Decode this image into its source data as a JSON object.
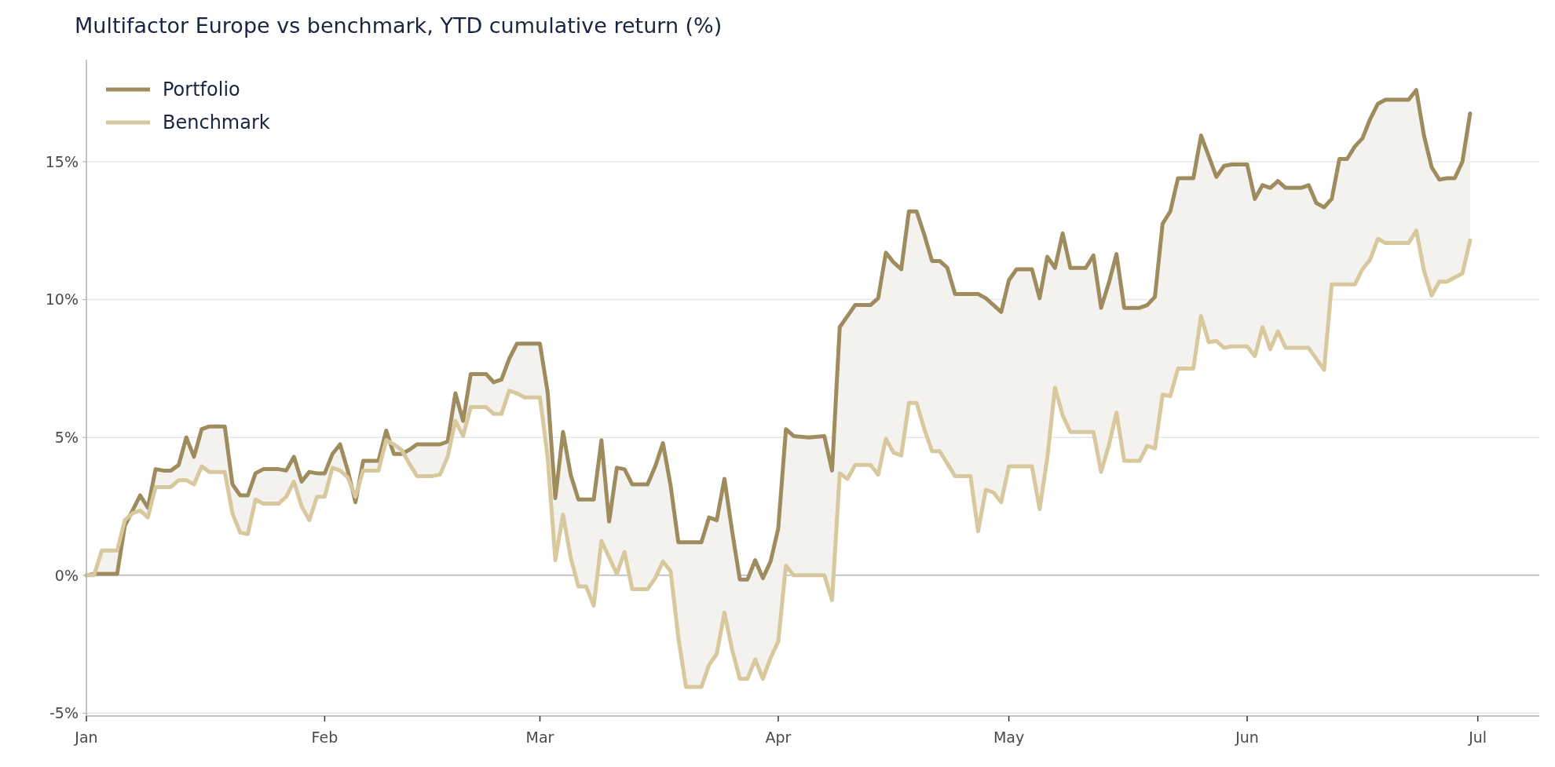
{
  "chart_data": {
    "type": "line",
    "title": "Multifactor Europe vs benchmark, YTD cumulative return (%)",
    "xlim": [
      "--01-01",
      "--07-09"
    ],
    "ylim": [
      -5.1,
      18.7
    ],
    "xticks": [
      {
        "value": "--01-01",
        "label": "Jan"
      },
      {
        "value": "--02-01",
        "label": "Feb"
      },
      {
        "value": "--03-01",
        "label": "Mar"
      },
      {
        "value": "--04-01",
        "label": "Apr"
      },
      {
        "value": "--05-01",
        "label": "May"
      },
      {
        "value": "--06-01",
        "label": "Jun"
      },
      {
        "value": "--07-01",
        "label": "Jul"
      }
    ],
    "yticks": [
      {
        "value": -5,
        "label": "-5%"
      },
      {
        "value": 0,
        "label": "0%"
      },
      {
        "value": 5,
        "label": "5%"
      },
      {
        "value": 10,
        "label": "10%"
      },
      {
        "value": 15,
        "label": "15%"
      }
    ],
    "grid": "y",
    "legend": "top left",
    "ref_lines": [
      {
        "axis": "y",
        "value": 0,
        "color": "#c4c4c4"
      }
    ],
    "x": [
      "--01-01",
      "--01-02",
      "--01-03",
      "--01-05",
      "--01-06",
      "--01-07",
      "--01-08",
      "--01-09",
      "--01-10",
      "--01-11",
      "--01-12",
      "--01-13",
      "--01-14",
      "--01-15",
      "--01-16",
      "--01-17",
      "--01-19",
      "--01-20",
      "--01-21",
      "--01-22",
      "--01-23",
      "--01-24",
      "--01-26",
      "--01-27",
      "--01-28",
      "--01-29",
      "--01-30",
      "--01-31",
      "--02-01",
      "--02-02",
      "--02-03",
      "--02-04",
      "--02-05",
      "--02-06",
      "--02-08",
      "--02-09",
      "--02-10",
      "--02-11",
      "--02-12",
      "--02-13",
      "--02-15",
      "--02-16",
      "--02-17",
      "--02-18",
      "--02-19",
      "--02-20",
      "--02-22",
      "--02-23",
      "--02-24",
      "--02-25",
      "--02-26",
      "--02-27",
      "--03-01",
      "--03-02",
      "--03-03",
      "--03-04",
      "--03-05",
      "--03-06",
      "--03-07",
      "--03-08",
      "--03-09",
      "--03-10",
      "--03-11",
      "--03-12",
      "--03-13",
      "--03-15",
      "--03-16",
      "--03-17",
      "--03-18",
      "--03-19",
      "--03-20",
      "--03-22",
      "--03-23",
      "--03-24",
      "--03-25",
      "--03-26",
      "--03-27",
      "--03-28",
      "--03-29",
      "--03-30",
      "--03-31",
      "--04-01",
      "--04-02",
      "--04-03",
      "--04-05",
      "--04-07",
      "--04-08",
      "--04-09",
      "--04-10",
      "--04-11",
      "--04-13",
      "--04-14",
      "--04-15",
      "--04-16",
      "--04-17",
      "--04-18",
      "--04-19",
      "--04-20",
      "--04-21",
      "--04-22",
      "--04-23",
      "--04-24",
      "--04-26",
      "--04-27",
      "--04-28",
      "--04-29",
      "--04-30",
      "--05-01",
      "--05-02",
      "--05-04",
      "--05-05",
      "--05-06",
      "--05-07",
      "--05-08",
      "--05-09",
      "--05-11",
      "--05-12",
      "--05-13",
      "--05-14",
      "--05-15",
      "--05-16",
      "--05-18",
      "--05-19",
      "--05-20",
      "--05-21",
      "--05-22",
      "--05-23",
      "--05-25",
      "--05-26",
      "--05-27",
      "--05-28",
      "--05-29",
      "--05-30",
      "--06-01",
      "--06-02",
      "--06-03",
      "--06-04",
      "--06-05",
      "--06-06",
      "--06-08",
      "--06-09",
      "--06-10",
      "--06-11",
      "--06-12",
      "--06-13",
      "--06-14",
      "--06-15",
      "--06-16",
      "--06-17",
      "--06-18",
      "--06-19",
      "--06-22",
      "--06-23",
      "--06-24",
      "--06-25",
      "--06-26",
      "--06-27",
      "--06-28",
      "--06-29",
      "--06-30"
    ],
    "series": [
      {
        "name": "Portfolio",
        "color": "#9e8c5e",
        "values": [
          0,
          0.05,
          0.05,
          0.05,
          1.8,
          2.35,
          2.9,
          2.45,
          3.85,
          3.8,
          3.8,
          4.0,
          5.0,
          4.3,
          5.3,
          5.4,
          5.4,
          3.3,
          2.9,
          2.9,
          3.7,
          3.85,
          3.85,
          3.8,
          4.3,
          3.4,
          3.75,
          3.7,
          3.7,
          4.4,
          4.75,
          3.8,
          2.65,
          4.15,
          4.15,
          5.25,
          4.4,
          4.4,
          4.55,
          4.75,
          4.75,
          4.75,
          4.85,
          6.6,
          5.6,
          7.3,
          7.3,
          7.0,
          7.1,
          7.85,
          8.4,
          8.4,
          8.4,
          6.65,
          2.8,
          5.2,
          3.65,
          2.75,
          2.75,
          2.75,
          4.9,
          1.95,
          3.9,
          3.85,
          3.3,
          3.3,
          3.95,
          4.8,
          3.25,
          1.2,
          1.2,
          1.2,
          2.1,
          2.0,
          3.5,
          1.6,
          -0.15,
          -0.15,
          0.55,
          -0.1,
          0.5,
          1.7,
          5.3,
          5.05,
          5.0,
          5.05,
          3.8,
          9.0,
          9.4,
          9.8,
          9.8,
          10.05,
          11.7,
          11.35,
          11.1,
          13.2,
          13.2,
          12.35,
          11.4,
          11.4,
          11.15,
          10.2,
          10.2,
          10.2,
          10.05,
          9.8,
          9.55,
          10.7,
          11.1,
          11.1,
          10.05,
          11.55,
          11.15,
          12.4,
          11.15,
          11.15,
          11.6,
          9.7,
          10.6,
          11.65,
          9.7,
          9.7,
          9.8,
          10.1,
          12.75,
          13.2,
          14.4,
          14.4,
          15.95,
          15.2,
          14.45,
          14.85,
          14.9,
          14.9,
          13.65,
          14.15,
          14.05,
          14.3,
          14.05,
          14.05,
          14.15,
          13.5,
          13.35,
          13.65,
          15.1,
          15.1,
          15.55,
          15.85,
          16.55,
          17.1,
          17.25,
          17.25,
          17.6,
          15.95,
          14.8,
          14.35,
          14.4,
          14.4,
          15.0,
          16.75
        ],
        "lower": [
          0,
          0,
          0.9,
          0.9,
          2.0,
          2.25,
          2.35,
          2.1,
          3.2,
          3.2,
          3.2,
          3.45,
          3.45,
          3.3,
          3.95,
          3.75,
          3.75,
          2.25,
          1.55,
          1.5,
          2.75,
          2.6,
          2.6,
          2.85,
          3.4,
          2.5,
          2.0,
          2.85,
          2.85,
          3.9,
          3.8,
          3.55,
          2.85,
          3.8,
          3.8,
          4.9,
          4.75,
          4.55,
          4.05,
          3.6,
          3.6,
          3.65,
          4.3,
          5.6,
          5.05,
          6.1,
          6.1,
          5.85,
          5.85,
          6.7,
          6.6,
          6.45,
          6.45,
          4.3,
          0.55,
          2.2,
          0.65,
          -0.4,
          -0.4,
          -1.1,
          1.25,
          0.65,
          0.05,
          0.85,
          -0.5,
          -0.5,
          -0.1,
          0.5,
          0.15,
          -2.25,
          -4.05,
          -4.05,
          -3.25,
          -2.85,
          -1.35,
          -2.7,
          -3.75,
          -3.75,
          -3.05,
          -3.75,
          -3.0,
          -2.4,
          0.35,
          0,
          0,
          0,
          -0.9,
          3.7,
          3.5,
          4.0,
          4.0,
          3.65,
          4.95,
          4.45,
          4.35,
          6.25,
          6.25,
          5.3,
          4.5,
          4.5,
          4.05,
          3.6,
          3.6,
          1.6,
          3.1,
          3.0,
          2.65,
          3.95,
          3.95,
          3.95,
          2.4,
          4.25,
          6.8,
          5.8,
          5.2,
          5.2,
          5.2,
          3.75,
          4.7,
          5.9,
          4.15,
          4.15,
          4.7,
          4.6,
          6.55,
          6.5,
          7.5,
          7.5,
          9.4,
          8.45,
          8.5,
          8.25,
          8.3,
          8.3,
          7.95,
          9.0,
          8.2,
          8.85,
          8.25,
          8.25,
          8.25,
          7.85,
          7.45,
          10.55,
          10.55,
          10.55,
          10.55,
          11.1,
          11.45,
          12.2,
          12.05,
          12.05,
          12.5,
          11.05,
          10.15,
          10.65,
          10.65,
          10.8,
          10.95,
          12.15
        ],
        "upper": [
          0,
          0.05,
          0.05,
          0.05,
          1.8,
          2.35,
          2.9,
          2.45,
          3.85,
          3.8,
          3.8,
          4.0,
          5.0,
          4.3,
          5.3,
          5.4,
          5.4,
          3.3,
          2.9,
          2.9,
          3.7,
          3.85,
          3.85,
          3.8,
          4.3,
          3.4,
          3.75,
          3.7,
          3.7,
          4.4,
          4.75,
          3.8,
          2.65,
          4.15,
          4.15,
          5.25,
          4.4,
          4.4,
          4.55,
          4.75,
          4.75,
          4.75,
          4.85,
          6.6,
          5.6,
          7.3,
          7.3,
          7.0,
          7.1,
          7.85,
          8.4,
          8.4,
          8.4,
          6.65,
          2.8,
          5.2,
          3.65,
          2.75,
          2.75,
          2.75,
          4.9,
          1.95,
          3.9,
          3.85,
          3.3,
          3.3,
          3.95,
          4.8,
          3.25,
          1.2,
          1.2,
          1.2,
          2.1,
          2.0,
          3.5,
          1.6,
          -0.15,
          -0.15,
          0.55,
          -0.1,
          0.5,
          1.7,
          5.3,
          5.05,
          5.0,
          5.05,
          3.8,
          9.0,
          9.4,
          9.8,
          9.8,
          10.05,
          11.7,
          11.35,
          11.1,
          13.2,
          13.2,
          12.35,
          11.4,
          11.4,
          11.15,
          10.2,
          10.2,
          10.2,
          10.05,
          9.8,
          9.55,
          10.7,
          11.1,
          11.1,
          10.05,
          11.55,
          11.15,
          12.4,
          11.15,
          11.15,
          11.6,
          9.7,
          10.6,
          11.65,
          9.7,
          9.7,
          9.8,
          10.1,
          12.75,
          13.2,
          14.4,
          14.4,
          15.95,
          15.2,
          14.45,
          14.85,
          14.9,
          14.9,
          13.65,
          14.15,
          14.05,
          14.3,
          14.05,
          14.05,
          14.15,
          13.5,
          13.35,
          13.65,
          15.1,
          15.1,
          15.55,
          15.85,
          16.55,
          17.1,
          17.25,
          17.25,
          17.6,
          15.95,
          14.8,
          14.35,
          14.4,
          14.4,
          15.0,
          16.75
        ]
      },
      {
        "name": "Benchmark",
        "color": "#d8c89e",
        "values": [
          0,
          0,
          0.9,
          0.9,
          2.0,
          2.25,
          2.35,
          2.1,
          3.2,
          3.2,
          3.2,
          3.45,
          3.45,
          3.3,
          3.95,
          3.75,
          3.75,
          2.25,
          1.55,
          1.5,
          2.75,
          2.6,
          2.6,
          2.85,
          3.4,
          2.5,
          2.0,
          2.85,
          2.85,
          3.9,
          3.8,
          3.55,
          2.85,
          3.8,
          3.8,
          4.9,
          4.75,
          4.55,
          4.05,
          3.6,
          3.6,
          3.65,
          4.3,
          5.6,
          5.05,
          6.1,
          6.1,
          5.85,
          5.85,
          6.7,
          6.6,
          6.45,
          6.45,
          4.3,
          0.55,
          2.2,
          0.65,
          -0.4,
          -0.4,
          -1.1,
          1.25,
          0.65,
          0.05,
          0.85,
          -0.5,
          -0.5,
          -0.1,
          0.5,
          0.15,
          -2.25,
          -4.05,
          -4.05,
          -3.25,
          -2.85,
          -1.35,
          -2.7,
          -3.75,
          -3.75,
          -3.05,
          -3.75,
          -3.0,
          -2.4,
          0.35,
          0,
          0,
          0,
          -0.9,
          3.7,
          3.5,
          4.0,
          4.0,
          3.65,
          4.95,
          4.45,
          4.35,
          6.25,
          6.25,
          5.3,
          4.5,
          4.5,
          4.05,
          3.6,
          3.6,
          1.6,
          3.1,
          3.0,
          2.65,
          3.95,
          3.95,
          3.95,
          2.4,
          4.25,
          6.8,
          5.8,
          5.2,
          5.2,
          5.2,
          3.75,
          4.7,
          5.9,
          4.15,
          4.15,
          4.7,
          4.6,
          6.55,
          6.5,
          7.5,
          7.5,
          9.4,
          8.45,
          8.5,
          8.25,
          8.3,
          8.3,
          7.95,
          9.0,
          8.2,
          8.85,
          8.25,
          8.25,
          8.25,
          7.85,
          7.45,
          10.55,
          10.55,
          10.55,
          10.55,
          11.1,
          11.45,
          12.2,
          12.05,
          12.05,
          12.5,
          11.05,
          10.15,
          10.65,
          10.65,
          10.8,
          10.95,
          12.15
        ]
      }
    ]
  }
}
